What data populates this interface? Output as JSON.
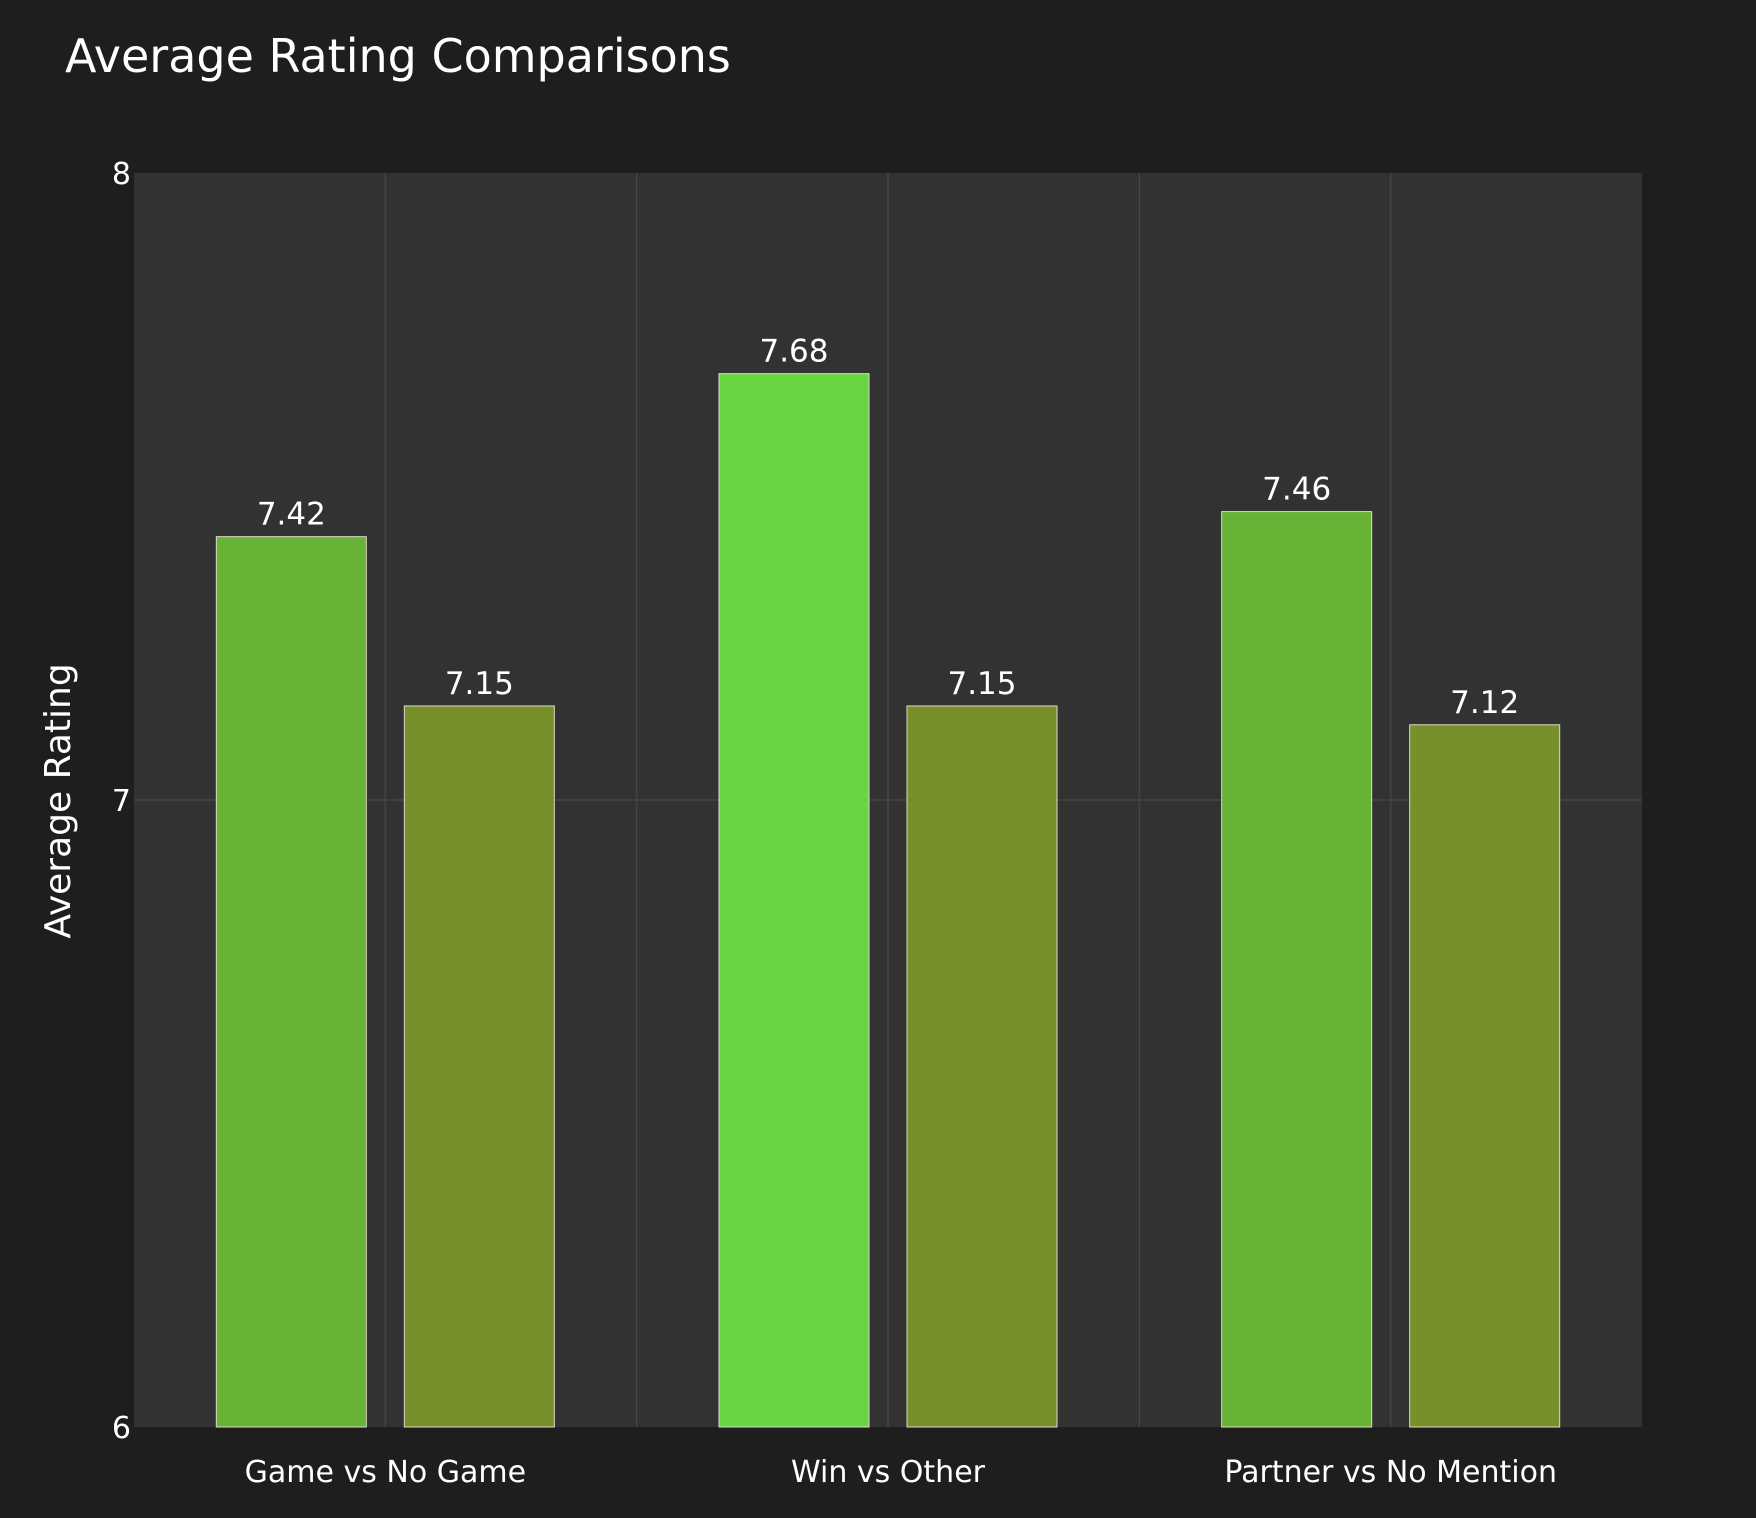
{
  "chart_data": {
    "type": "bar",
    "title": "Average Rating Comparisons",
    "xlabel": "",
    "ylabel": "Average Rating",
    "ylim": [
      6,
      8
    ],
    "yticks": [
      "6",
      "7",
      "8"
    ],
    "grid": true,
    "legend": "none",
    "categories": [
      "Game vs No Game",
      "Win vs Other",
      "Partner vs No Mention"
    ],
    "groups": [
      {
        "category": "Game vs No Game",
        "values": [
          7.42,
          7.15
        ],
        "labels": [
          "7.42",
          "7.15"
        ],
        "colors": [
          "#68b236",
          "#78902c"
        ]
      },
      {
        "category": "Win vs Other",
        "values": [
          7.68,
          7.15
        ],
        "labels": [
          "7.68",
          "7.15"
        ],
        "colors": [
          "#69d641",
          "#78902c"
        ]
      },
      {
        "category": "Partner vs No Mention",
        "values": [
          7.46,
          7.12
        ],
        "labels": [
          "7.46",
          "7.12"
        ],
        "colors": [
          "#68b236",
          "#78902c"
        ]
      }
    ]
  },
  "colors": {
    "page_background": "#1e1e1e",
    "plot_background": "#323232",
    "gridline": "#444444",
    "text": "#ffffff",
    "bar_outline": "#d9d9c9"
  }
}
